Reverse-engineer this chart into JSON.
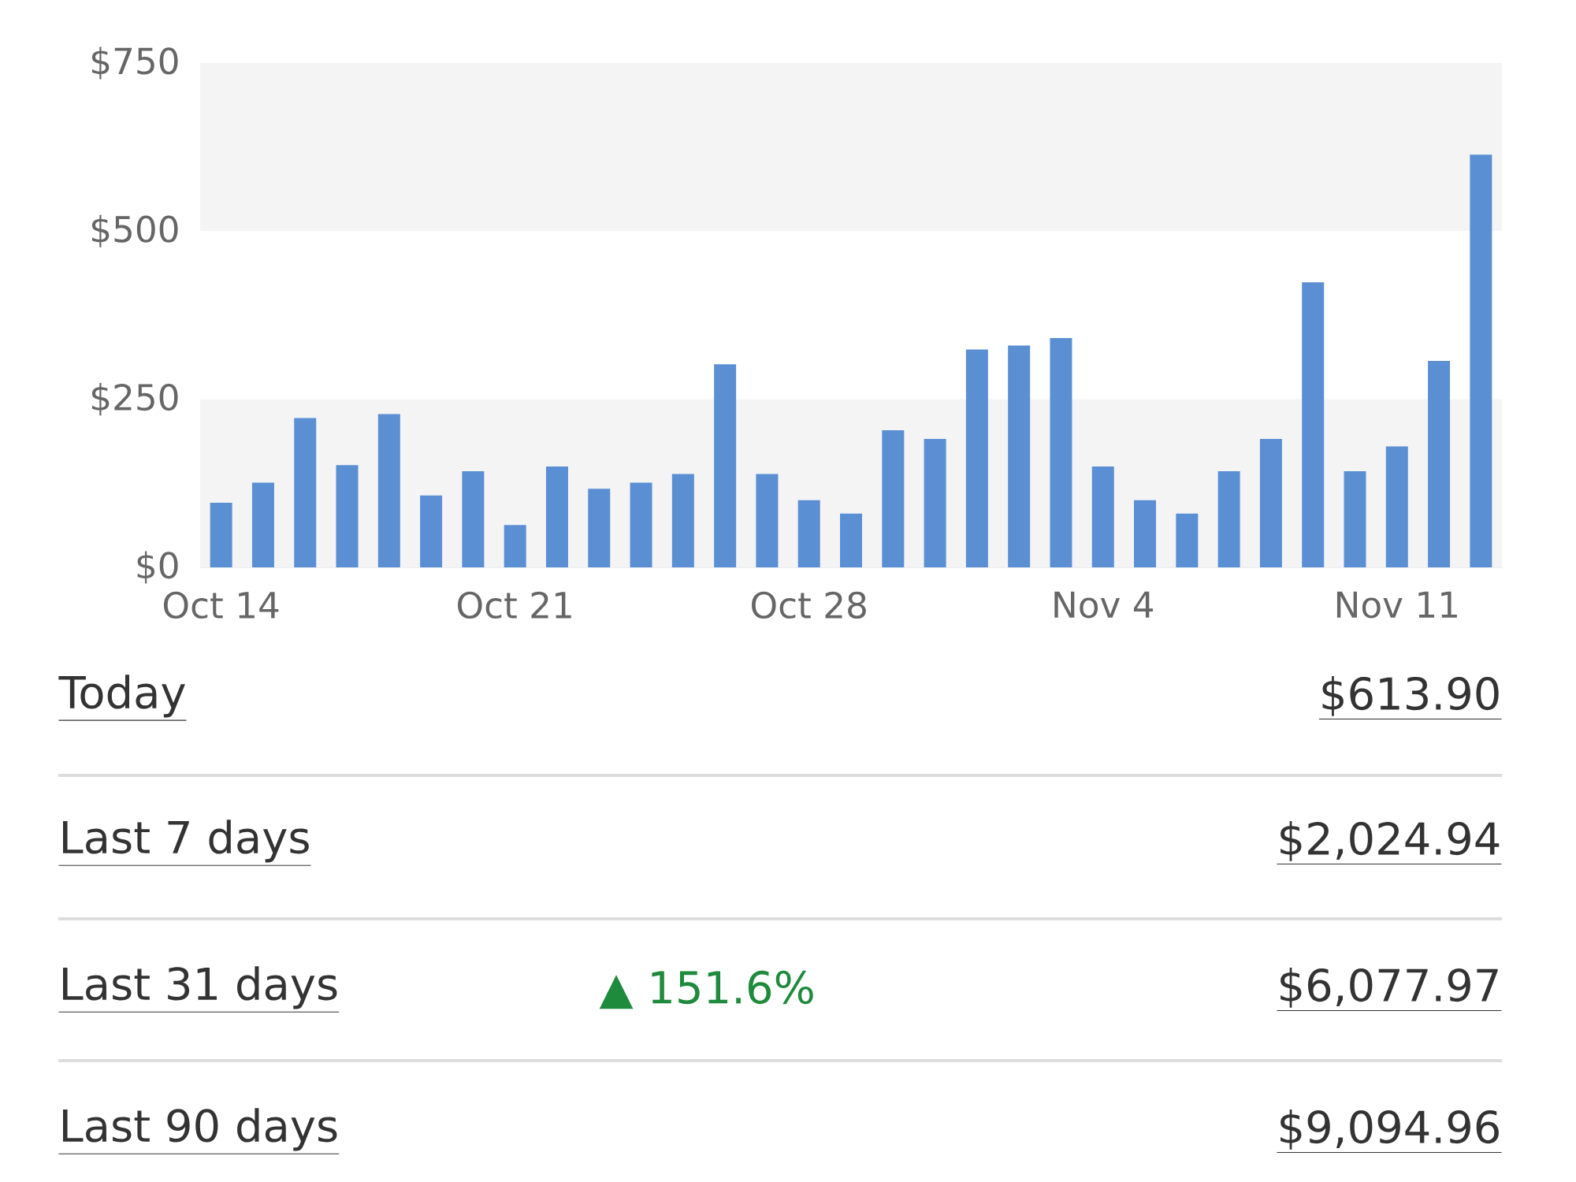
{
  "chart_data": {
    "type": "bar",
    "categories": [
      "Oct 14",
      null,
      null,
      null,
      null,
      null,
      null,
      "Oct 21",
      null,
      null,
      null,
      null,
      null,
      null,
      "Oct 28",
      null,
      null,
      null,
      null,
      null,
      null,
      "Nov 4",
      null,
      null,
      null,
      null,
      null,
      null,
      "Nov 11",
      null,
      null
    ],
    "values": [
      96,
      126,
      222,
      152,
      228,
      107,
      143,
      63,
      150,
      117,
      126,
      139,
      302,
      139,
      100,
      80,
      204,
      191,
      324,
      330,
      341,
      150,
      100,
      80,
      143,
      191,
      424,
      143,
      180,
      307,
      613.9
    ],
    "color": "#5b8fd4",
    "ylim": [
      0,
      750
    ],
    "yticks": [
      {
        "value": 0,
        "label": "$0"
      },
      {
        "value": 250,
        "label": "$250"
      },
      {
        "value": 500,
        "label": "$500"
      },
      {
        "value": 750,
        "label": "$750"
      }
    ],
    "bands": [
      {
        "axis": "y",
        "from": 0,
        "to": 250,
        "color": "#f4f4f4"
      },
      {
        "axis": "y",
        "from": 500,
        "to": 750,
        "color": "#f4f4f4"
      }
    ],
    "annotations": [
      "Today",
      "$613.90",
      "Last 7 days",
      "$2,024.94",
      "Last 31 days",
      "▲ 151.6%",
      "$6,077.97",
      "Last 90 days",
      "$9,094.96"
    ]
  }
}
